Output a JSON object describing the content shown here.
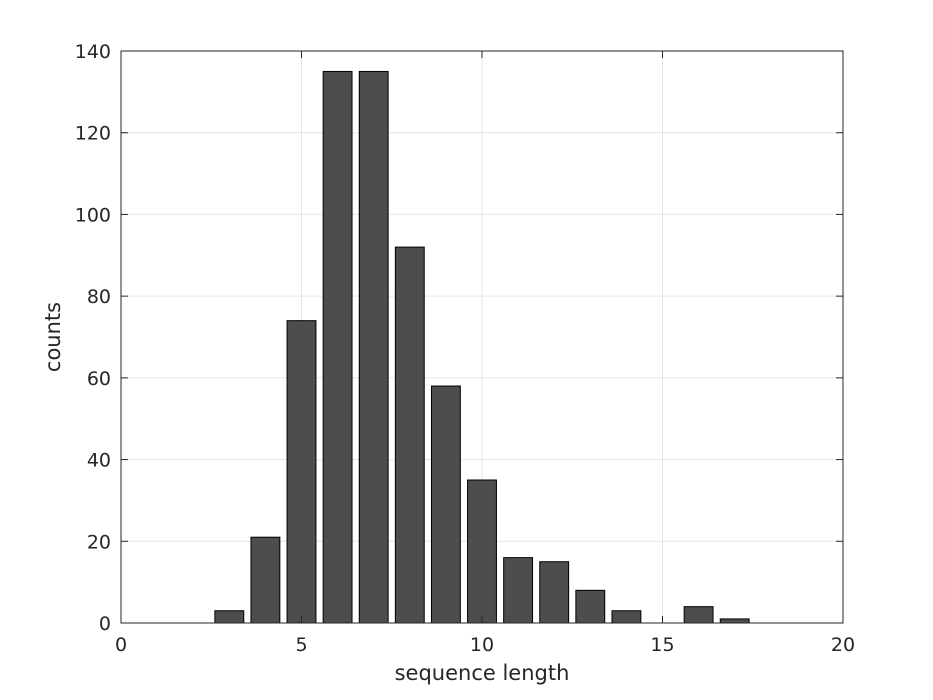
{
  "chart_data": {
    "type": "bar",
    "title": "",
    "xlabel": "sequence length",
    "ylabel": "counts",
    "xlim": [
      0,
      20
    ],
    "ylim": [
      0,
      140
    ],
    "xticks": [
      0,
      5,
      10,
      15,
      20
    ],
    "yticks": [
      0,
      20,
      40,
      60,
      80,
      100,
      120,
      140
    ],
    "grid": true,
    "bar_color": "#4d4d4d",
    "x": [
      1,
      2,
      3,
      4,
      5,
      6,
      7,
      8,
      9,
      10,
      11,
      12,
      13,
      14,
      15,
      16,
      17
    ],
    "values": [
      0,
      0,
      3,
      21,
      74,
      135,
      135,
      92,
      58,
      35,
      16,
      15,
      8,
      3,
      0,
      4,
      1
    ]
  }
}
